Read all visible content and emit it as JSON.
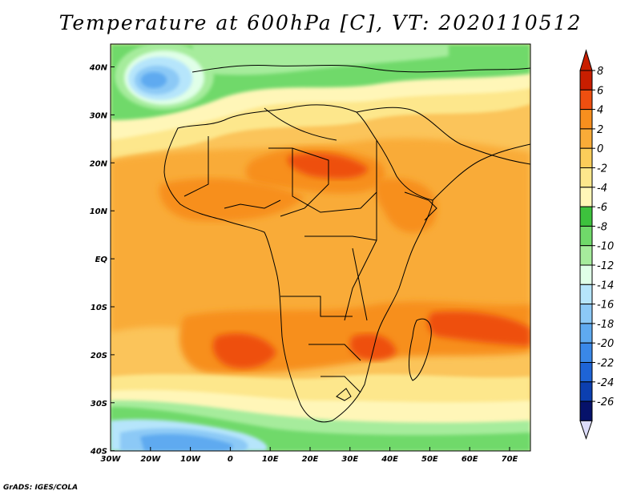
{
  "title": "Temperature at 600hPa [C], VT: 2020110512",
  "credit": "GrADS: IGES/COLA",
  "x_ticks": [
    "30W",
    "20W",
    "10W",
    "0",
    "10E",
    "20E",
    "30E",
    "40E",
    "50E",
    "60E",
    "70E"
  ],
  "y_ticks": [
    "40N",
    "30N",
    "20N",
    "10N",
    "EQ",
    "10S",
    "20S",
    "30S",
    "40S"
  ],
  "colorbar": {
    "labels": [
      "8",
      "6",
      "4",
      "2",
      "0",
      "-2",
      "-4",
      "-6",
      "-8",
      "-10",
      "-12",
      "-14",
      "-16",
      "-18",
      "-20",
      "-22",
      "-24",
      "-26"
    ],
    "colors": [
      "#c81e00",
      "#ee4f10",
      "#f78f1e",
      "#f9ab38",
      "#fccd5a",
      "#fde78c",
      "#fff6b8",
      "#3dc23d",
      "#70d96a",
      "#a6ec9c",
      "#e0ffe8",
      "#b6e5fb",
      "#8cc9f6",
      "#5faaf0",
      "#3a88e8",
      "#1e64d6",
      "#0c3fb0",
      "#06126a"
    ],
    "overflow_low_color": "#dcdcfa"
  },
  "legend_colors": {
    "ocean_base": "#fbc45a",
    "warm": "#f78f1e",
    "hot": "#ee4f10",
    "cool": "#fde78c",
    "green": "#3dc23d",
    "lightgreen": "#a6ec9c",
    "blue": "#5faaf0"
  }
}
